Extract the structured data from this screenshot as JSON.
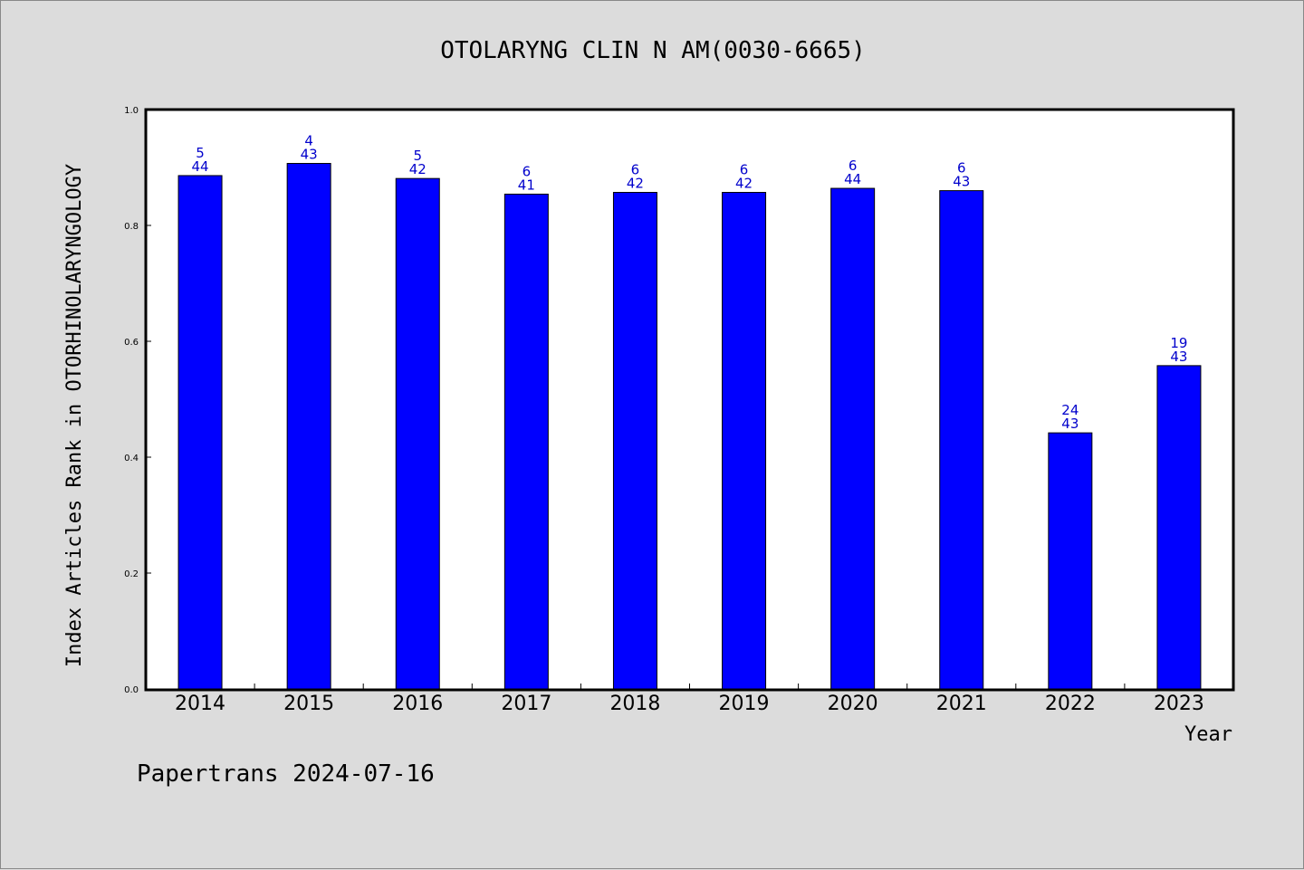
{
  "footer": "Papertrans 2024-07-16",
  "colors": {
    "background": "#dcdcdc",
    "plot_background": "#ffffff",
    "bar": "#0000ff",
    "label": "#0000cc"
  },
  "chart_data": {
    "type": "bar",
    "title": "OTOLARYNG CLIN N AM(0030-6665)",
    "xlabel": "Year",
    "ylabel": "Index Articles Rank in OTORHINOLARYNGOLOGY",
    "ylim": [
      0,
      1.0
    ],
    "yticks": [
      "0.0",
      "0.2",
      "0.4",
      "0.6",
      "0.8",
      "1.0"
    ],
    "grid": false,
    "categories": [
      "2014",
      "2015",
      "2016",
      "2017",
      "2018",
      "2019",
      "2020",
      "2021",
      "2022",
      "2023"
    ],
    "values": [
      0.886,
      0.907,
      0.881,
      0.854,
      0.857,
      0.857,
      0.864,
      0.86,
      0.442,
      0.558
    ],
    "rank": [
      "5",
      "4",
      "5",
      "6",
      "6",
      "6",
      "6",
      "6",
      "24",
      "19"
    ],
    "total": [
      "44",
      "43",
      "42",
      "41",
      "42",
      "42",
      "44",
      "43",
      "43",
      "43"
    ]
  }
}
